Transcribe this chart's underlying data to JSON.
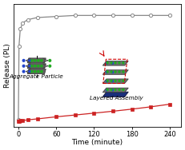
{
  "title": "",
  "xlabel": "Time (minute)",
  "ylabel": "Release (PL)",
  "xlim": [
    -8,
    258
  ],
  "ylim": [
    -0.05,
    1.12
  ],
  "xticks": [
    0,
    60,
    120,
    180,
    240
  ],
  "gray_x": [
    0,
    1,
    3,
    7,
    15,
    30,
    60,
    90,
    120,
    150,
    180,
    210,
    240
  ],
  "gray_y": [
    0.02,
    0.72,
    0.88,
    0.94,
    0.97,
    0.99,
    1.0,
    1.01,
    1.01,
    1.01,
    1.01,
    1.01,
    1.01
  ],
  "red_x": [
    0,
    1,
    3,
    7,
    15,
    30,
    60,
    90,
    120,
    150,
    180,
    210,
    240
  ],
  "red_y": [
    0.002,
    0.004,
    0.007,
    0.01,
    0.016,
    0.025,
    0.045,
    0.062,
    0.08,
    0.098,
    0.118,
    0.14,
    0.165
  ],
  "gray_color": "#888888",
  "red_color": "#cc2222",
  "background_color": "#ffffff",
  "fig_width": 2.31,
  "fig_height": 1.88,
  "dpi": 100,
  "aggregate_label": "Aggregate Particle",
  "layered_label": "Layered Assembly"
}
